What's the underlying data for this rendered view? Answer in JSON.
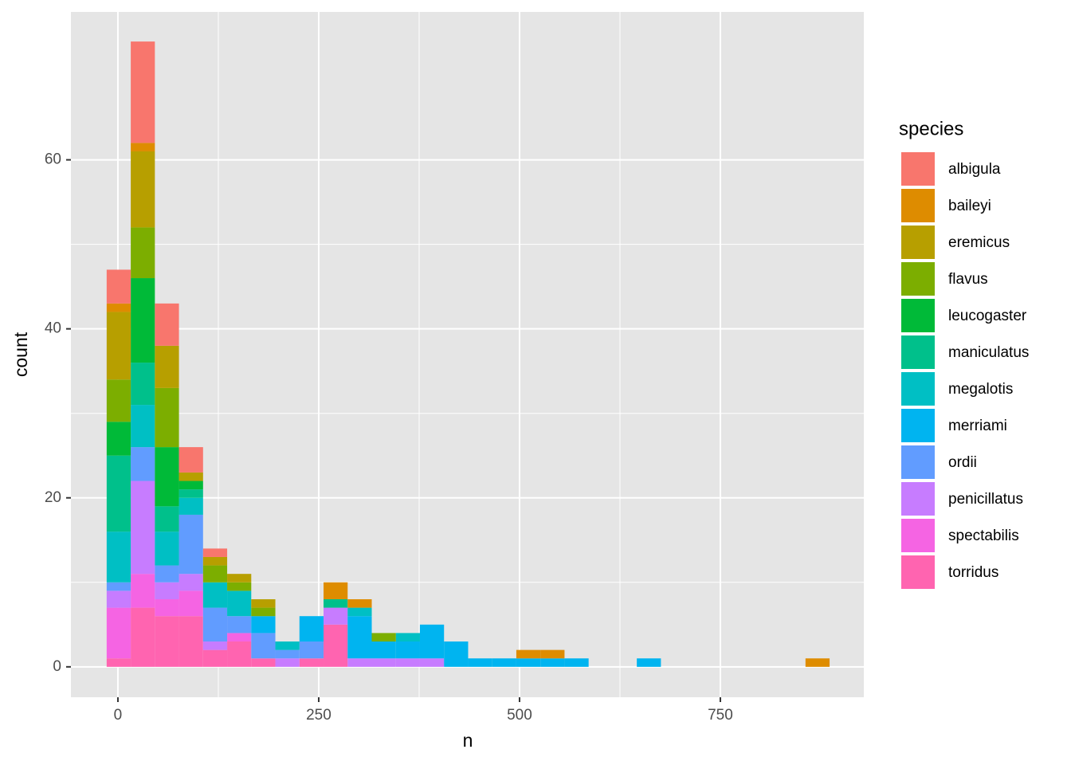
{
  "chart_data": {
    "type": "histogram",
    "xlabel": "n",
    "ylabel": "count",
    "legend_title": "species",
    "bins": [
      -14,
      16,
      46,
      76,
      106,
      136,
      166,
      196,
      226,
      256,
      286,
      316,
      346,
      376,
      406,
      436,
      466,
      496,
      526,
      556,
      586,
      616,
      646,
      676,
      706,
      736,
      766,
      796,
      826,
      856,
      886
    ],
    "xlim": [
      -58.5,
      928.6
    ],
    "ylim": [
      -3.6,
      77.5
    ],
    "xticks": [
      0,
      250,
      500,
      750
    ],
    "yticks": [
      0,
      20,
      40,
      60
    ],
    "grid": true,
    "series": [
      {
        "name": "albigula",
        "color": "#F8766D",
        "values": [
          4,
          12,
          5,
          3,
          1,
          0,
          0,
          0,
          0,
          0,
          0,
          0,
          0,
          0,
          0,
          0,
          0,
          0,
          0,
          0,
          0,
          0,
          0,
          0,
          0,
          0,
          0,
          0,
          0,
          0
        ]
      },
      {
        "name": "baileyi",
        "color": "#DE8C00",
        "values": [
          1,
          1,
          0,
          0,
          0,
          0,
          0,
          0,
          0,
          2,
          1,
          0,
          0,
          0,
          0,
          0,
          0,
          1,
          1,
          0,
          0,
          0,
          0,
          0,
          0,
          0,
          0,
          0,
          0,
          1
        ]
      },
      {
        "name": "eremicus",
        "color": "#B79F00",
        "values": [
          8,
          9,
          5,
          1,
          1,
          1,
          1,
          0,
          0,
          0,
          0,
          0,
          0,
          0,
          0,
          0,
          0,
          0,
          0,
          0,
          0,
          0,
          0,
          0,
          0,
          0,
          0,
          0,
          0,
          0
        ]
      },
      {
        "name": "flavus",
        "color": "#7CAE00",
        "values": [
          5,
          6,
          7,
          0,
          2,
          1,
          1,
          0,
          0,
          0,
          0,
          1,
          0,
          0,
          0,
          0,
          0,
          0,
          0,
          0,
          0,
          0,
          0,
          0,
          0,
          0,
          0,
          0,
          0,
          0
        ]
      },
      {
        "name": "leucogaster",
        "color": "#00BA38",
        "values": [
          4,
          10,
          7,
          1,
          0,
          0,
          0,
          0,
          0,
          0,
          0,
          0,
          0,
          0,
          0,
          0,
          0,
          0,
          0,
          0,
          0,
          0,
          0,
          0,
          0,
          0,
          0,
          0,
          0,
          0
        ]
      },
      {
        "name": "maniculatus",
        "color": "#00C08B",
        "values": [
          9,
          5,
          3,
          1,
          0,
          0,
          0,
          0,
          0,
          1,
          0,
          0,
          0,
          0,
          0,
          0,
          0,
          0,
          0,
          0,
          0,
          0,
          0,
          0,
          0,
          0,
          0,
          0,
          0,
          0
        ]
      },
      {
        "name": "megalotis",
        "color": "#00BFC4",
        "values": [
          6,
          5,
          4,
          2,
          3,
          3,
          0,
          1,
          0,
          0,
          1,
          0,
          1,
          0,
          0,
          0,
          0,
          0,
          0,
          0,
          0,
          0,
          0,
          0,
          0,
          0,
          0,
          0,
          0,
          0
        ]
      },
      {
        "name": "merriami",
        "color": "#00B4F0",
        "values": [
          0,
          0,
          0,
          0,
          0,
          0,
          2,
          0,
          3,
          0,
          5,
          2,
          2,
          4,
          3,
          1,
          1,
          1,
          1,
          1,
          0,
          0,
          1,
          0,
          0,
          0,
          0,
          0,
          0,
          0
        ]
      },
      {
        "name": "ordii",
        "color": "#619CFF",
        "values": [
          1,
          4,
          2,
          7,
          4,
          2,
          3,
          1,
          2,
          0,
          0,
          0,
          0,
          0,
          0,
          0,
          0,
          0,
          0,
          0,
          0,
          0,
          0,
          0,
          0,
          0,
          0,
          0,
          0,
          0
        ]
      },
      {
        "name": "penicillatus",
        "color": "#C77CFF",
        "values": [
          2,
          11,
          2,
          2,
          1,
          0,
          0,
          1,
          0,
          2,
          1,
          1,
          1,
          1,
          0,
          0,
          0,
          0,
          0,
          0,
          0,
          0,
          0,
          0,
          0,
          0,
          0,
          0,
          0,
          0
        ]
      },
      {
        "name": "spectabilis",
        "color": "#F564E3",
        "values": [
          6,
          4,
          2,
          3,
          0,
          1,
          0,
          0,
          0,
          0,
          0,
          0,
          0,
          0,
          0,
          0,
          0,
          0,
          0,
          0,
          0,
          0,
          0,
          0,
          0,
          0,
          0,
          0,
          0,
          0
        ]
      },
      {
        "name": "torridus",
        "color": "#FF64B0",
        "values": [
          1,
          7,
          6,
          6,
          2,
          3,
          1,
          0,
          1,
          5,
          0,
          0,
          0,
          0,
          0,
          0,
          0,
          0,
          0,
          0,
          0,
          0,
          0,
          0,
          0,
          0,
          0,
          0,
          0,
          0
        ]
      }
    ]
  }
}
